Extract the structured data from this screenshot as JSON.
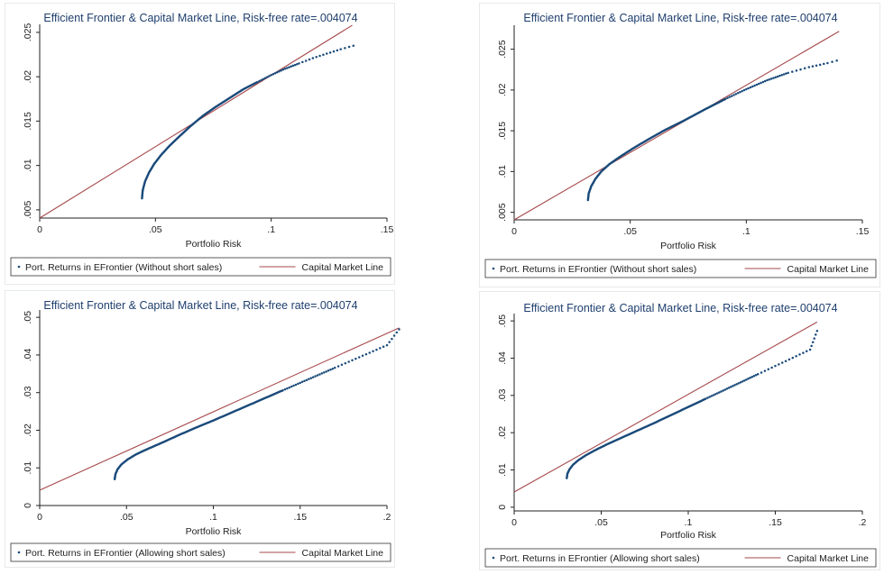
{
  "colors": {
    "background": "#eaf2f3",
    "plot_background": "#ffffff",
    "title": "#1f3f6e",
    "frontier": "#1a4a7a",
    "cml": "#a6484b",
    "axis": "#222222"
  },
  "chart_data": [
    {
      "type": "scatter",
      "title": "Efficient Frontier & Capital Market Line, Risk-free rate=.004074",
      "xlabel": "Portfolio Risk",
      "ylabel": "",
      "xlim": [
        0,
        0.15
      ],
      "ylim": [
        0.004074,
        0.0255
      ],
      "x_ticks": [
        "0",
        ".05",
        ".1",
        ".15"
      ],
      "x_tick_values": [
        0,
        0.05,
        0.1,
        0.15
      ],
      "y_ticks": [
        ".005",
        ".01",
        ".015",
        ".02",
        ".025"
      ],
      "y_tick_values": [
        0.005,
        0.01,
        0.015,
        0.02,
        0.025
      ],
      "legend": [
        "Port. Returns in EFrontier (Without short sales)",
        "Capital Market Line"
      ],
      "legend_position": "bottom",
      "grid": false,
      "series": [
        {
          "name": "Port. Returns in EFrontier (Without short sales)",
          "kind": "points",
          "x": [
            0.0442,
            0.0445,
            0.0455,
            0.0472,
            0.0495,
            0.0525,
            0.056,
            0.06,
            0.065,
            0.0705,
            0.076,
            0.082,
            0.088,
            0.094,
            0.1,
            0.106,
            0.112,
            0.118,
            0.124,
            0.13,
            0.1355
          ],
          "y": [
            0.0063,
            0.0072,
            0.0082,
            0.0092,
            0.0102,
            0.0112,
            0.0122,
            0.0132,
            0.0144,
            0.0156,
            0.0166,
            0.0176,
            0.0186,
            0.0194,
            0.0202,
            0.0209,
            0.0215,
            0.0221,
            0.0226,
            0.0231,
            0.0235
          ]
        },
        {
          "name": "Capital Market Line",
          "kind": "line",
          "x": [
            0,
            0.135
          ],
          "y": [
            0.004074,
            0.0258
          ]
        }
      ]
    },
    {
      "type": "scatter",
      "title": "Efficient Frontier & Capital Market Line, Risk-free rate=.004074",
      "xlabel": "Portfolio Risk",
      "ylabel": "",
      "xlim": [
        0,
        0.15
      ],
      "ylim": [
        0.004074,
        0.0275
      ],
      "x_ticks": [
        "0",
        ".05",
        ".1",
        ".15"
      ],
      "x_tick_values": [
        0,
        0.05,
        0.1,
        0.15
      ],
      "y_ticks": [
        ".005",
        ".01",
        ".015",
        ".02",
        ".025"
      ],
      "y_tick_values": [
        0.005,
        0.01,
        0.015,
        0.02,
        0.025
      ],
      "legend": [
        "Port. Returns in EFrontier (Without short sales)",
        "Capital Market Line"
      ],
      "legend_position": "bottom",
      "grid": false,
      "series": [
        {
          "name": "Port. Returns in EFrontier (Without short sales)",
          "kind": "points",
          "x": [
            0.0318,
            0.0321,
            0.0332,
            0.035,
            0.0375,
            0.041,
            0.0455,
            0.051,
            0.0575,
            0.065,
            0.0735,
            0.082,
            0.091,
            0.1,
            0.109,
            0.118,
            0.127,
            0.135,
            0.139
          ],
          "y": [
            0.0065,
            0.0073,
            0.0082,
            0.0091,
            0.01,
            0.0109,
            0.0118,
            0.0128,
            0.0139,
            0.0151,
            0.0163,
            0.0176,
            0.0189,
            0.0201,
            0.0212,
            0.0221,
            0.0228,
            0.0233,
            0.0236
          ]
        },
        {
          "name": "Capital Market Line",
          "kind": "line",
          "x": [
            0,
            0.14
          ],
          "y": [
            0.004074,
            0.0272
          ]
        }
      ]
    },
    {
      "type": "scatter",
      "title": "Efficient Frontier & Capital Market Line, Risk-free rate=.004074",
      "xlabel": "Portfolio Risk",
      "ylabel": "",
      "xlim": [
        0,
        0.2
      ],
      "ylim": [
        0,
        0.051
      ],
      "x_ticks": [
        "0",
        ".05",
        ".1",
        ".15",
        ".2"
      ],
      "x_tick_values": [
        0,
        0.05,
        0.1,
        0.15,
        0.2
      ],
      "y_ticks": [
        "0",
        ".01",
        ".02",
        ".03",
        ".04",
        ".05"
      ],
      "y_tick_values": [
        0,
        0.01,
        0.02,
        0.03,
        0.04,
        0.05
      ],
      "legend": [
        "Port. Returns in EFrontier (Allowing short sales)",
        "Capital Market Line"
      ],
      "legend_position": "bottom",
      "grid": false,
      "series": [
        {
          "name": "Port. Returns in EFrontier (Allowing short sales)",
          "kind": "points",
          "x": [
            0.0432,
            0.0436,
            0.0448,
            0.047,
            0.0505,
            0.0555,
            0.062,
            0.07,
            0.08,
            0.09,
            0.1,
            0.11,
            0.12,
            0.13,
            0.14,
            0.15,
            0.16,
            0.17,
            0.18,
            0.19,
            0.2,
            0.207
          ],
          "y": [
            0.007,
            0.0083,
            0.0096,
            0.0109,
            0.0122,
            0.0136,
            0.015,
            0.0166,
            0.0187,
            0.0207,
            0.0226,
            0.0246,
            0.0266,
            0.0286,
            0.0306,
            0.0326,
            0.0346,
            0.0366,
            0.0386,
            0.0406,
            0.0426,
            0.0468
          ]
        },
        {
          "name": "Capital Market Line",
          "kind": "line",
          "x": [
            0,
            0.207
          ],
          "y": [
            0.004074,
            0.0472
          ]
        }
      ]
    },
    {
      "type": "scatter",
      "title": "Efficient Frontier & Capital Market Line, Risk-free rate=.004074",
      "xlabel": "Portfolio Risk",
      "ylabel": "",
      "xlim": [
        0,
        0.2
      ],
      "ylim": [
        -0.001,
        0.051
      ],
      "x_ticks": [
        "0",
        ".05",
        ".1",
        ".15",
        ".2"
      ],
      "x_tick_values": [
        0,
        0.05,
        0.1,
        0.15,
        0.2
      ],
      "y_ticks": [
        "0",
        ".01",
        ".02",
        ".03",
        ".04",
        ".05"
      ],
      "y_tick_values": [
        0,
        0.01,
        0.02,
        0.03,
        0.04,
        0.05
      ],
      "legend": [
        "Port. Returns in EFrontier (Allowing short sales)",
        "Capital Market Line"
      ],
      "legend_position": "bottom",
      "grid": false,
      "series": [
        {
          "name": "Port. Returns in EFrontier (Allowing short sales)",
          "kind": "points",
          "x": [
            0.0302,
            0.0306,
            0.0318,
            0.0338,
            0.0368,
            0.041,
            0.0465,
            0.053,
            0.061,
            0.07,
            0.08,
            0.09,
            0.1,
            0.11,
            0.12,
            0.13,
            0.14,
            0.15,
            0.16,
            0.17,
            0.174
          ],
          "y": [
            0.0078,
            0.009,
            0.0102,
            0.0114,
            0.0126,
            0.0139,
            0.0153,
            0.0168,
            0.0185,
            0.0204,
            0.0225,
            0.0247,
            0.0269,
            0.0291,
            0.0313,
            0.0335,
            0.0357,
            0.0379,
            0.0401,
            0.0423,
            0.0473
          ]
        },
        {
          "name": "Capital Market Line",
          "kind": "line",
          "x": [
            0,
            0.174
          ],
          "y": [
            0.004074,
            0.0497
          ]
        }
      ]
    }
  ]
}
